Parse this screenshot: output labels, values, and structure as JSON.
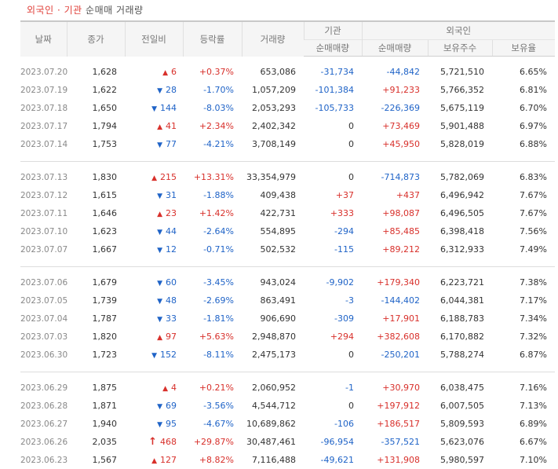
{
  "caption": {
    "part1": "외국인",
    "dot": "·",
    "part2": "기관",
    "part3": "순매매 거래량"
  },
  "headers": {
    "date": "날짜",
    "price": "종가",
    "diff": "전일비",
    "rate": "등락률",
    "volume": "거래량",
    "inst_group": "기관",
    "inst_net": "순매매량",
    "foreign_group": "외국인",
    "foreign_net": "순매매량",
    "foreign_shares": "보유주수",
    "foreign_ratio": "보유율"
  },
  "groups": [
    [
      {
        "date": "2023.07.20",
        "price": "1,628",
        "dir": "up",
        "diff": "6",
        "rate": "+0.37%",
        "volume": "653,086",
        "inst": "-31,734",
        "foreign": "-44,842",
        "shares": "5,721,510",
        "ratio": "6.65%"
      },
      {
        "date": "2023.07.19",
        "price": "1,622",
        "dir": "down",
        "diff": "28",
        "rate": "-1.70%",
        "volume": "1,057,209",
        "inst": "-101,384",
        "foreign": "+91,233",
        "shares": "5,766,352",
        "ratio": "6.81%"
      },
      {
        "date": "2023.07.18",
        "price": "1,650",
        "dir": "down",
        "diff": "144",
        "rate": "-8.03%",
        "volume": "2,053,293",
        "inst": "-105,733",
        "foreign": "-226,369",
        "shares": "5,675,119",
        "ratio": "6.70%"
      },
      {
        "date": "2023.07.17",
        "price": "1,794",
        "dir": "up",
        "diff": "41",
        "rate": "+2.34%",
        "volume": "2,402,342",
        "inst": "0",
        "foreign": "+73,469",
        "shares": "5,901,488",
        "ratio": "6.97%"
      },
      {
        "date": "2023.07.14",
        "price": "1,753",
        "dir": "down",
        "diff": "77",
        "rate": "-4.21%",
        "volume": "3,708,149",
        "inst": "0",
        "foreign": "+45,950",
        "shares": "5,828,019",
        "ratio": "6.88%"
      }
    ],
    [
      {
        "date": "2023.07.13",
        "price": "1,830",
        "dir": "up",
        "diff": "215",
        "rate": "+13.31%",
        "volume": "33,354,979",
        "inst": "0",
        "foreign": "-714,873",
        "shares": "5,782,069",
        "ratio": "6.83%"
      },
      {
        "date": "2023.07.12",
        "price": "1,615",
        "dir": "down",
        "diff": "31",
        "rate": "-1.88%",
        "volume": "409,438",
        "inst": "+37",
        "foreign": "+437",
        "shares": "6,496,942",
        "ratio": "7.67%"
      },
      {
        "date": "2023.07.11",
        "price": "1,646",
        "dir": "up",
        "diff": "23",
        "rate": "+1.42%",
        "volume": "422,731",
        "inst": "+333",
        "foreign": "+98,087",
        "shares": "6,496,505",
        "ratio": "7.67%"
      },
      {
        "date": "2023.07.10",
        "price": "1,623",
        "dir": "down",
        "diff": "44",
        "rate": "-2.64%",
        "volume": "554,895",
        "inst": "-294",
        "foreign": "+85,485",
        "shares": "6,398,418",
        "ratio": "7.56%"
      },
      {
        "date": "2023.07.07",
        "price": "1,667",
        "dir": "down",
        "diff": "12",
        "rate": "-0.71%",
        "volume": "502,532",
        "inst": "-115",
        "foreign": "+89,212",
        "shares": "6,312,933",
        "ratio": "7.49%"
      }
    ],
    [
      {
        "date": "2023.07.06",
        "price": "1,679",
        "dir": "down",
        "diff": "60",
        "rate": "-3.45%",
        "volume": "943,024",
        "inst": "-9,902",
        "foreign": "+179,340",
        "shares": "6,223,721",
        "ratio": "7.38%"
      },
      {
        "date": "2023.07.05",
        "price": "1,739",
        "dir": "down",
        "diff": "48",
        "rate": "-2.69%",
        "volume": "863,491",
        "inst": "-3",
        "foreign": "-144,402",
        "shares": "6,044,381",
        "ratio": "7.17%"
      },
      {
        "date": "2023.07.04",
        "price": "1,787",
        "dir": "down",
        "diff": "33",
        "rate": "-1.81%",
        "volume": "906,690",
        "inst": "-309",
        "foreign": "+17,901",
        "shares": "6,188,783",
        "ratio": "7.34%"
      },
      {
        "date": "2023.07.03",
        "price": "1,820",
        "dir": "up",
        "diff": "97",
        "rate": "+5.63%",
        "volume": "2,948,870",
        "inst": "+294",
        "foreign": "+382,608",
        "shares": "6,170,882",
        "ratio": "7.32%"
      },
      {
        "date": "2023.06.30",
        "price": "1,723",
        "dir": "down",
        "diff": "152",
        "rate": "-8.11%",
        "volume": "2,475,173",
        "inst": "0",
        "foreign": "-250,201",
        "shares": "5,788,274",
        "ratio": "6.87%"
      }
    ],
    [
      {
        "date": "2023.06.29",
        "price": "1,875",
        "dir": "up",
        "diff": "4",
        "rate": "+0.21%",
        "volume": "2,060,952",
        "inst": "-1",
        "foreign": "+30,970",
        "shares": "6,038,475",
        "ratio": "7.16%"
      },
      {
        "date": "2023.06.28",
        "price": "1,871",
        "dir": "down",
        "diff": "69",
        "rate": "-3.56%",
        "volume": "4,544,712",
        "inst": "0",
        "foreign": "+197,912",
        "shares": "6,007,505",
        "ratio": "7.13%"
      },
      {
        "date": "2023.06.27",
        "price": "1,940",
        "dir": "down",
        "diff": "95",
        "rate": "-4.67%",
        "volume": "10,689,862",
        "inst": "-106",
        "foreign": "+186,517",
        "shares": "5,809,593",
        "ratio": "6.89%"
      },
      {
        "date": "2023.06.26",
        "price": "2,035",
        "dir": "upper",
        "diff": "468",
        "rate": "+29.87%",
        "volume": "30,487,461",
        "inst": "-96,954",
        "foreign": "-357,521",
        "shares": "5,623,076",
        "ratio": "6.67%"
      },
      {
        "date": "2023.06.23",
        "price": "1,567",
        "dir": "up",
        "diff": "127",
        "rate": "+8.82%",
        "volume": "7,116,488",
        "inst": "-49,621",
        "foreign": "+131,908",
        "shares": "5,980,597",
        "ratio": "7.10%"
      }
    ]
  ]
}
